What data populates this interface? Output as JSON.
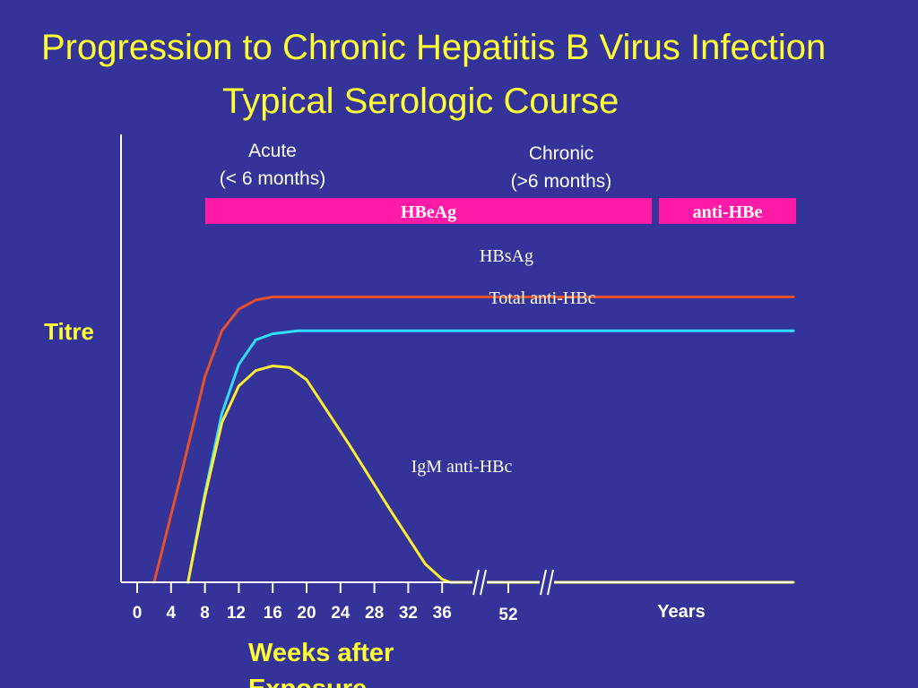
{
  "title": "Progression to Chronic Hepatitis B Virus Infection",
  "subtitle": "Typical Serologic Course",
  "colors": {
    "background": "#333399",
    "title": "#ffff33",
    "axis": "#ffffff",
    "hbsag": "#e8502a",
    "total_anti_hbc": "#33ddff",
    "igm_anti_hbc": "#ffee33",
    "bar": "#ff1aa8"
  },
  "chart_data": {
    "type": "line",
    "ylabel": "Titre",
    "xlabel": "Weeks after Exposure",
    "x_ticks": [
      0,
      4,
      8,
      12,
      16,
      20,
      24,
      28,
      32,
      36,
      52
    ],
    "x_tick_labels": [
      "0",
      "4",
      "8",
      "12",
      "16",
      "20",
      "24",
      "28",
      "32",
      36,
      "52"
    ],
    "years_label": "Years",
    "phases": [
      {
        "label": "Acute",
        "sublabel": "(< 6 months)"
      },
      {
        "label": "Chronic",
        "sublabel": "(>6 months)"
      }
    ],
    "bars": [
      {
        "label": "HBeAg",
        "start": 8,
        "end": 61
      },
      {
        "label": "anti-HBe",
        "start": 62,
        "end": 78
      }
    ],
    "ylim": [
      0,
      100
    ],
    "series": [
      {
        "name": "HBsAg",
        "color_key": "hbsag",
        "points": [
          [
            2,
            0
          ],
          [
            5,
            33
          ],
          [
            8,
            67
          ],
          [
            10,
            82
          ],
          [
            12,
            89
          ],
          [
            14,
            92
          ],
          [
            16,
            93
          ],
          [
            78,
            93
          ]
        ]
      },
      {
        "name": "Total anti-HBc",
        "color_key": "total_anti_hbc",
        "points": [
          [
            6,
            0
          ],
          [
            8,
            29
          ],
          [
            10,
            55
          ],
          [
            12,
            71
          ],
          [
            14,
            79
          ],
          [
            16,
            81
          ],
          [
            19,
            82
          ],
          [
            78,
            82
          ]
        ]
      },
      {
        "name": "IgM anti-HBc",
        "color_key": "igm_anti_hbc",
        "points": [
          [
            6,
            0
          ],
          [
            8,
            28
          ],
          [
            10,
            52
          ],
          [
            12,
            64
          ],
          [
            14,
            69
          ],
          [
            16,
            70.5
          ],
          [
            18,
            70
          ],
          [
            20,
            66
          ],
          [
            25,
            45
          ],
          [
            30,
            23
          ],
          [
            34,
            6
          ],
          [
            36,
            1
          ],
          [
            38,
            0
          ],
          [
            78,
            0
          ]
        ]
      }
    ]
  }
}
